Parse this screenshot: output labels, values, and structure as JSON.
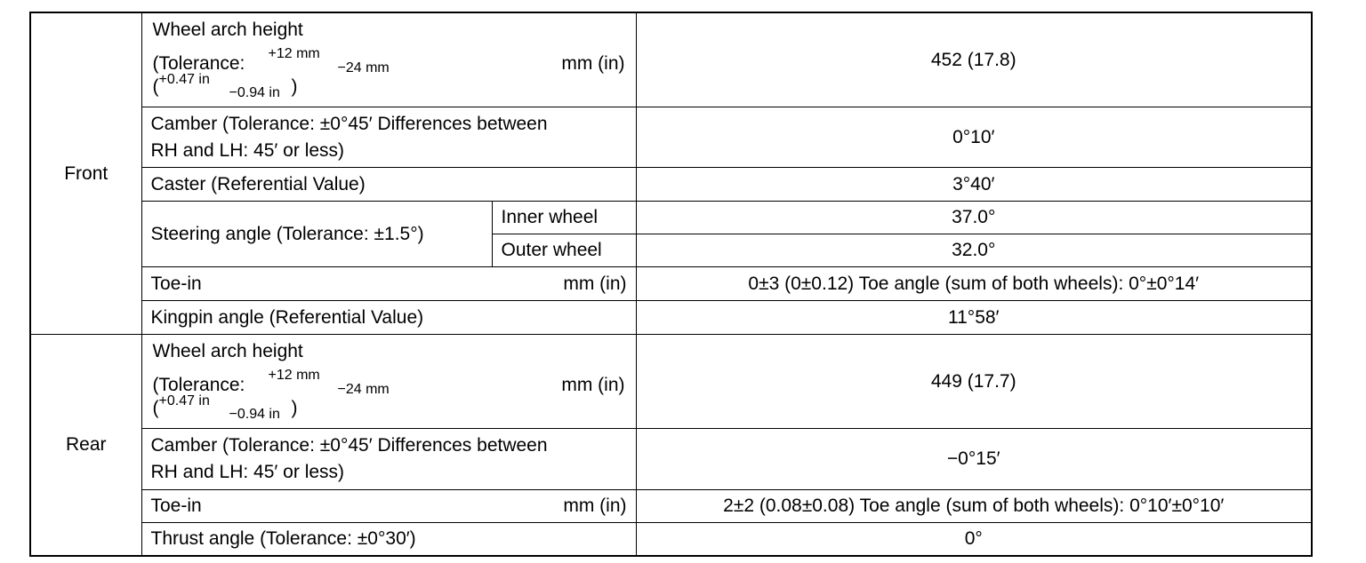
{
  "table": {
    "sections": [
      {
        "name": "Front",
        "rows": [
          {
            "item": "Wheel arch height",
            "tolerance_prefix": "(Tolerance:",
            "tolerance_upper": "+12 mm",
            "tolerance_lower": "−24 mm",
            "tolerance_in_open": "(",
            "tolerance_in_upper": "+0.47 in",
            "tolerance_in_lower": "−0.94 in",
            "tolerance_in_close": ")",
            "unit": "mm (in)",
            "value": "452 (17.8)"
          },
          {
            "item_lines": [
              "Camber (Tolerance: ±0°45′ Differences between",
              "RH and LH: 45′ or less)"
            ],
            "value": "0°10′"
          },
          {
            "item": "Caster (Referential Value)",
            "value": "3°40′"
          },
          {
            "item": "Steering angle (Tolerance: ±1.5°)",
            "sub": [
              {
                "wheel": "Inner wheel",
                "value": "37.0°"
              },
              {
                "wheel": "Outer wheel",
                "value": "32.0°"
              }
            ]
          },
          {
            "item": "Toe-in",
            "unit": "mm (in)",
            "value": "0±3 (0±0.12) Toe angle (sum of both wheels): 0°±0°14′"
          },
          {
            "item": "Kingpin angle (Referential Value)",
            "value": "11°58′"
          }
        ]
      },
      {
        "name": "Rear",
        "rows": [
          {
            "item": "Wheel arch height",
            "tolerance_prefix": "(Tolerance:",
            "tolerance_upper": "+12 mm",
            "tolerance_lower": "−24 mm",
            "tolerance_in_open": "(",
            "tolerance_in_upper": "+0.47 in",
            "tolerance_in_lower": "−0.94 in",
            "tolerance_in_close": ")",
            "unit": "mm (in)",
            "value": "449 (17.7)"
          },
          {
            "item_lines": [
              "Camber (Tolerance: ±0°45′ Differences between",
              "RH and LH: 45′ or less)"
            ],
            "value": "−0°15′"
          },
          {
            "item": "Toe-in",
            "unit": "mm (in)",
            "value": "2±2 (0.08±0.08) Toe angle (sum of both wheels): 0°10′±0°10′"
          },
          {
            "item": "Thrust angle (Tolerance: ±0°30′)",
            "value": "0°"
          }
        ]
      }
    ]
  }
}
